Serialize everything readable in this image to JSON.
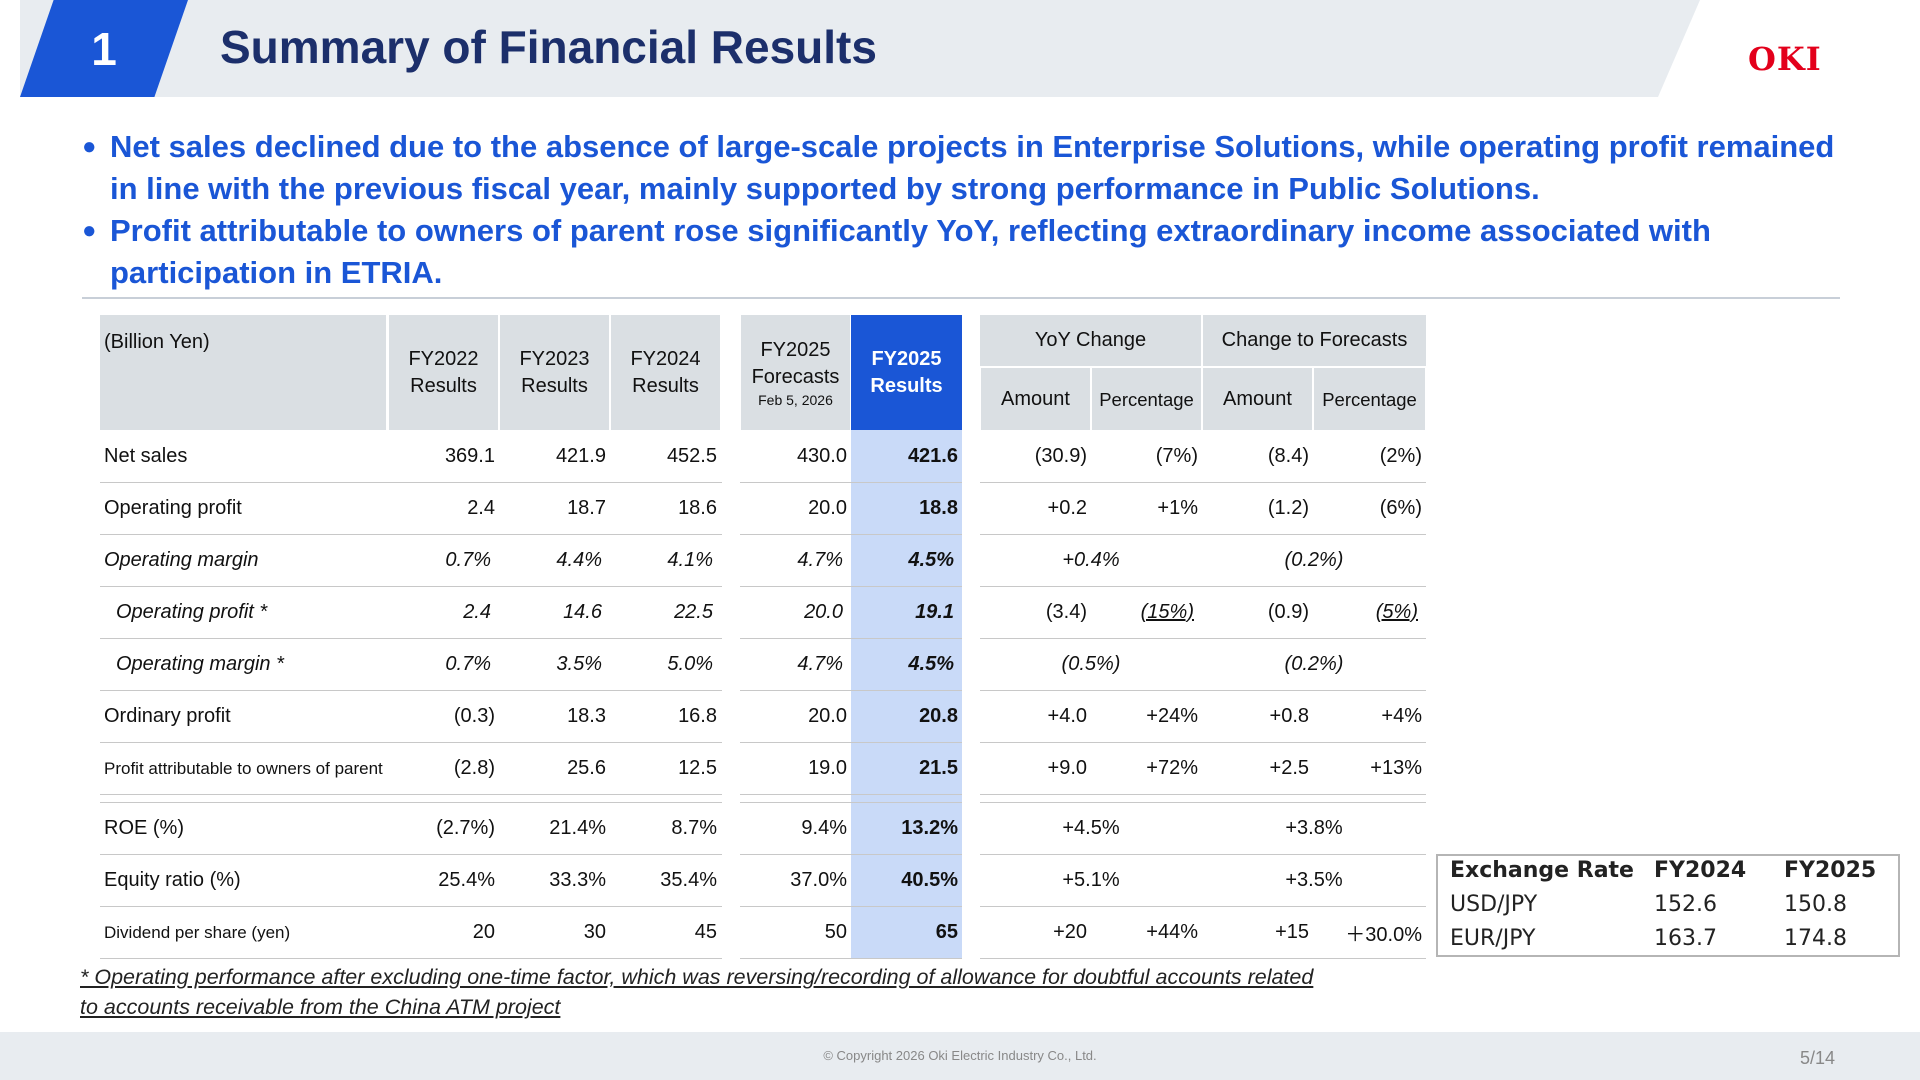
{
  "header": {
    "number": "1",
    "title": "Summary of Financial Results",
    "logo": "OKI"
  },
  "bullets": [
    "Net sales declined due to the absence of large-scale projects in Enterprise Solutions, while operating profit remained in line with the previous fiscal year, mainly supported by strong performance in Public Solutions.",
    "Profit attributable to owners of parent rose significantly YoY, reflecting extraordinary income associated with participation in ETRIA."
  ],
  "table": {
    "unit": "(Billion Yen)",
    "col_fy2022": [
      "FY2022",
      "Results"
    ],
    "col_fy2023": [
      "FY2023",
      "Results"
    ],
    "col_fy2024": [
      "FY2024",
      "Results"
    ],
    "col_fy2025f": [
      "FY2025",
      "Forecasts",
      "Feb 5, 2026"
    ],
    "col_fy2025r": [
      "FY2025",
      "Results"
    ],
    "yoy": "YoY Change",
    "ctf": "Change to Forecasts",
    "amount": "Amount",
    "percentage": "Percentage",
    "rows": [
      {
        "label": "Net sales",
        "vals": [
          "369.1",
          "421.9",
          "452.5",
          "430.0",
          "421.6"
        ],
        "yoy_amt": "(30.9)",
        "yoy_pct": "(7%)",
        "ctf_amt": "(8.4)",
        "ctf_pct": "(2%)"
      },
      {
        "label": "Operating profit",
        "vals": [
          "2.4",
          "18.7",
          "18.6",
          "20.0",
          "18.8"
        ],
        "yoy_amt": "+0.2",
        "yoy_pct": "+1%",
        "ctf_amt": "(1.2)",
        "ctf_pct": "(6%)"
      },
      {
        "label": "Operating margin",
        "vals": [
          "0.7%",
          "4.4%",
          "4.1%",
          "4.7%",
          "4.5%"
        ],
        "yoy_merged": "+0.4%",
        "ctf_merged": "(0.2%)"
      },
      {
        "label": "Operating profit *",
        "vals": [
          "2.4",
          "14.6",
          "22.5",
          "20.0",
          "19.1"
        ],
        "yoy_amt": "(3.4)",
        "yoy_pct": "(15%)",
        "ctf_amt": "(0.9)",
        "ctf_pct": "(5%)"
      },
      {
        "label": "Operating margin *",
        "vals": [
          "0.7%",
          "3.5%",
          "5.0%",
          "4.7%",
          "4.5%"
        ],
        "yoy_merged": "(0.5%)",
        "ctf_merged": "(0.2%)"
      },
      {
        "label": "Ordinary profit",
        "vals": [
          "(0.3)",
          "18.3",
          "16.8",
          "20.0",
          "20.8"
        ],
        "yoy_amt": "+4.0",
        "yoy_pct": "+24%",
        "ctf_amt": "+0.8",
        "ctf_pct": "+4%"
      },
      {
        "label": "Profit attributable to owners of parent",
        "vals": [
          "(2.8)",
          "25.6",
          "12.5",
          "19.0",
          "21.5"
        ],
        "yoy_amt": "+9.0",
        "yoy_pct": "+72%",
        "ctf_amt": "+2.5",
        "ctf_pct": "+13%"
      },
      {
        "label": "ROE (%)",
        "vals": [
          "(2.7%)",
          "21.4%",
          "8.7%",
          "9.4%",
          "13.2%"
        ],
        "yoy_merged": "+4.5%",
        "ctf_merged": "+3.8%"
      },
      {
        "label": "Equity ratio (%)",
        "vals": [
          "25.4%",
          "33.3%",
          "35.4%",
          "37.0%",
          "40.5%"
        ],
        "yoy_merged": "+5.1%",
        "ctf_merged": "+3.5%"
      },
      {
        "label": "Dividend per share (yen)",
        "vals": [
          "20",
          "30",
          "45",
          "50",
          "65"
        ],
        "yoy_amt": "+20",
        "yoy_pct": "+44%",
        "ctf_amt": "+15",
        "ctf_pct": "＋30.0%"
      }
    ]
  },
  "footnote": "* Operating performance after excluding one-time factor, which was reversing/recording of allowance for doubtful accounts related to accounts receivable from the China ATM project",
  "exchange": {
    "header": [
      "Exchange Rate",
      "FY2024",
      "FY2025"
    ],
    "rows": [
      [
        "USD/JPY",
        "152.6",
        "150.8"
      ],
      [
        "EUR/JPY",
        "163.7",
        "174.8"
      ]
    ]
  },
  "footer": {
    "copyright": "© Copyright 2026 Oki Electric Industry Co., Ltd.",
    "page": "5/14"
  },
  "colors": {
    "accent": "#1a56d6",
    "title": "#1c2f6b",
    "highlight": "#c9daf8",
    "logo": "#e3001b"
  }
}
